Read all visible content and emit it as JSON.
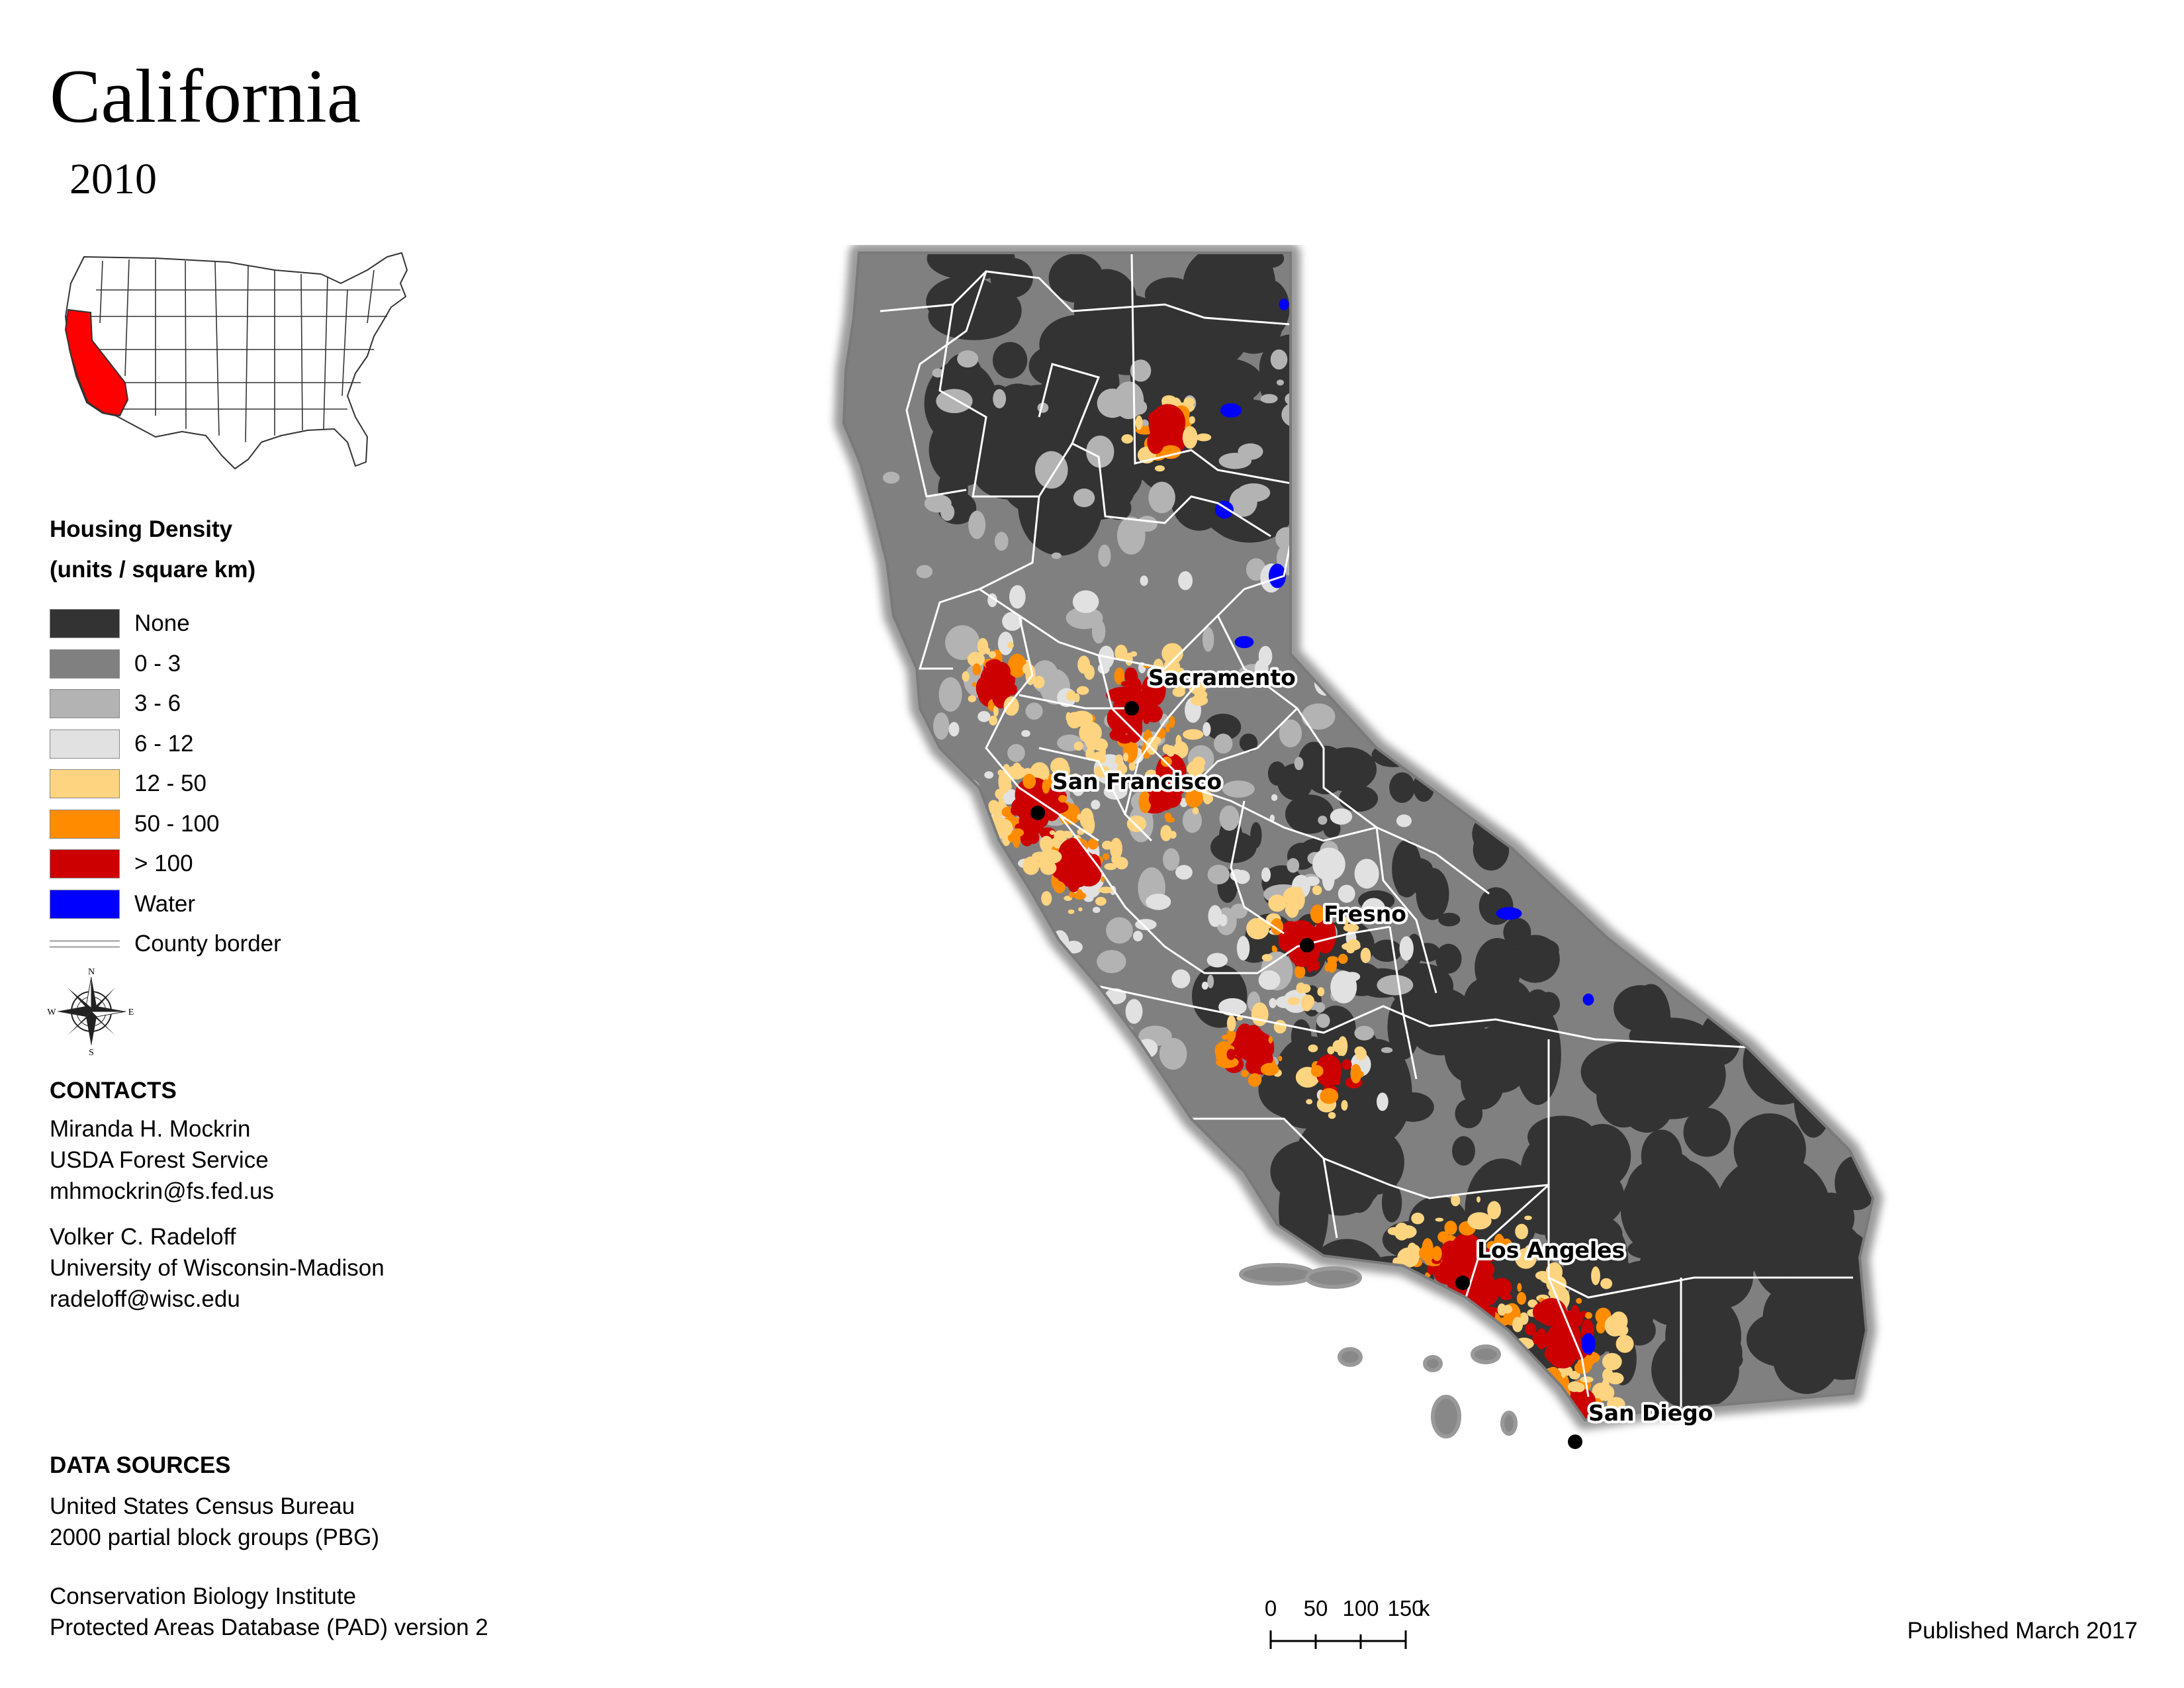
{
  "title": "California",
  "year": "2010",
  "legend": {
    "title_line1": "Housing Density",
    "title_line2": "(units / square km)",
    "items": [
      {
        "label": "None",
        "color": "#333333"
      },
      {
        "label": "0 - 3",
        "color": "#808080"
      },
      {
        "label": "3 - 6",
        "color": "#b3b3b3"
      },
      {
        "label": "6 - 12",
        "color": "#e1e1e1"
      },
      {
        "label": "12 - 50",
        "color": "#ffd480"
      },
      {
        "label": "50 - 100",
        "color": "#ff8c00"
      },
      {
        "label": "> 100",
        "color": "#cc0000"
      },
      {
        "label": "Water",
        "color": "#0000ff"
      },
      {
        "label": "County border",
        "color": "#ffffff"
      }
    ]
  },
  "compass": {
    "n": "N",
    "s": "S",
    "e": "E",
    "w": "W"
  },
  "contacts": {
    "heading": "CONTACTS",
    "person1": {
      "name": "Miranda H. Mockrin",
      "org": "USDA Forest Service",
      "email": "mhmockrin@fs.fed.us"
    },
    "person2": {
      "name": "Volker C. Radeloff",
      "org": "University of Wisconsin-Madison",
      "email": "radeloff@wisc.edu"
    }
  },
  "data_sources": {
    "heading": "DATA SOURCES",
    "source1_line1": "United States Census Bureau",
    "source1_line2": "2000 partial block groups (PBG)",
    "source2_line1": "Conservation Biology Institute",
    "source2_line2": "Protected Areas Database (PAD) version 2"
  },
  "cities": [
    "Sacramento",
    "San Francisco",
    "Fresno",
    "Los Angeles",
    "San Diego"
  ],
  "scale": {
    "ticks": [
      "0",
      "50",
      "100",
      "150"
    ],
    "unit": "km"
  },
  "published": "Published March 2017",
  "inset": {
    "highlight_color": "#ff0000",
    "highlighted_state": "California"
  }
}
